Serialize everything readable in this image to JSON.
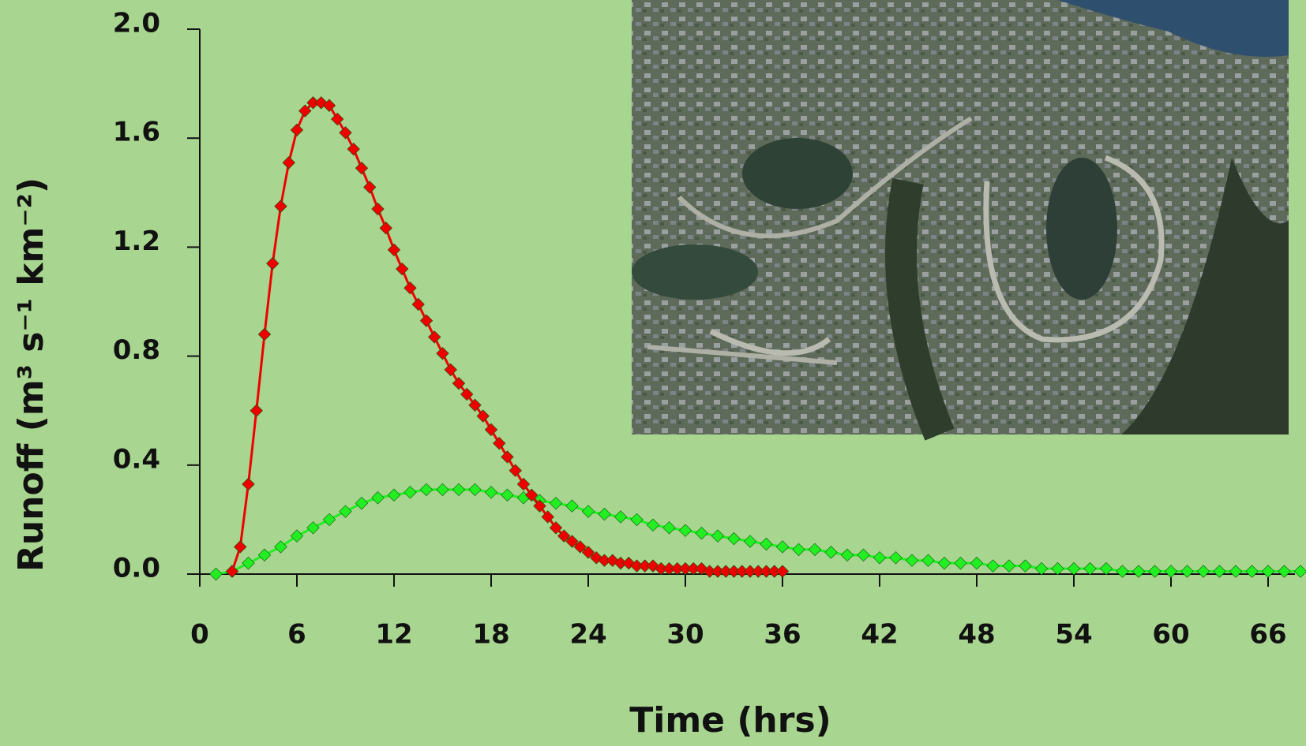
{
  "chart_data": {
    "type": "line",
    "xlabel": "Time (hrs)",
    "ylabel": "Runoff (m³ s⁻¹ km⁻²)",
    "xlim": [
      0,
      68
    ],
    "xticks": [
      0,
      6,
      12,
      18,
      24,
      30,
      36,
      42,
      48,
      54,
      60,
      66
    ],
    "ylim": [
      0,
      2
    ],
    "yticks": [
      {
        "value": 0,
        "label": "0.0"
      },
      0.4,
      0.8,
      1.2,
      1.6,
      {
        "value": 2,
        "label": "2.0"
      }
    ],
    "series": [
      {
        "color": "#ee0000",
        "x": [
          2,
          2.5,
          3,
          3.5,
          4,
          4.5,
          5,
          5.5,
          6,
          6.5,
          7,
          7.5,
          8,
          8.5,
          9,
          9.5,
          10,
          10.5,
          11,
          11.5,
          12,
          12.5,
          13,
          13.5,
          14,
          14.5,
          15,
          15.5,
          16,
          16.5,
          17,
          17.5,
          18,
          18.5,
          19,
          19.5,
          20,
          20.5,
          21,
          21.5,
          22,
          22.5,
          23,
          23.5,
          24,
          24.5,
          25,
          25.5,
          26,
          26.5,
          27,
          27.5,
          28,
          28.5,
          29,
          29.5,
          30,
          30.5,
          31,
          31.5,
          32,
          32.5,
          33,
          33.5,
          34,
          34.5,
          35,
          35.5,
          36
        ],
        "values": [
          0.01,
          0.1,
          0.33,
          0.6,
          0.88,
          1.14,
          1.35,
          1.51,
          1.63,
          1.7,
          1.73,
          1.73,
          1.72,
          1.67,
          1.62,
          1.56,
          1.49,
          1.42,
          1.34,
          1.27,
          1.19,
          1.12,
          1.05,
          0.99,
          0.93,
          0.87,
          0.81,
          0.75,
          0.7,
          0.66,
          0.62,
          0.58,
          0.53,
          0.48,
          0.43,
          0.38,
          0.33,
          0.29,
          0.25,
          0.21,
          0.17,
          0.14,
          0.12,
          0.1,
          0.08,
          0.06,
          0.05,
          0.05,
          0.04,
          0.04,
          0.03,
          0.03,
          0.03,
          0.02,
          0.02,
          0.02,
          0.02,
          0.02,
          0.02,
          0.01,
          0.01,
          0.01,
          0.01,
          0.01,
          0.01,
          0.01,
          0.01,
          0.01,
          0.01
        ]
      },
      {
        "color": "#22ee22",
        "x": [
          1,
          2,
          3,
          4,
          5,
          6,
          7,
          8,
          9,
          10,
          11,
          12,
          13,
          14,
          15,
          16,
          17,
          18,
          19,
          20,
          21,
          22,
          23,
          24,
          25,
          26,
          27,
          28,
          29,
          30,
          31,
          32,
          33,
          34,
          35,
          36,
          37,
          38,
          39,
          40,
          41,
          42,
          43,
          44,
          45,
          46,
          47,
          48,
          49,
          50,
          51,
          52,
          53,
          54,
          55,
          56,
          57,
          58,
          59,
          60,
          61,
          62,
          63,
          64,
          65,
          66,
          67,
          68
        ],
        "values": [
          0,
          0.01,
          0.04,
          0.07,
          0.1,
          0.14,
          0.17,
          0.2,
          0.23,
          0.26,
          0.28,
          0.29,
          0.3,
          0.31,
          0.31,
          0.31,
          0.31,
          0.3,
          0.29,
          0.28,
          0.27,
          0.26,
          0.25,
          0.23,
          0.22,
          0.21,
          0.2,
          0.18,
          0.17,
          0.16,
          0.15,
          0.14,
          0.13,
          0.12,
          0.11,
          0.1,
          0.09,
          0.09,
          0.08,
          0.07,
          0.07,
          0.06,
          0.06,
          0.05,
          0.05,
          0.04,
          0.04,
          0.04,
          0.03,
          0.03,
          0.03,
          0.02,
          0.02,
          0.02,
          0.02,
          0.02,
          0.01,
          0.01,
          0.01,
          0.01,
          0.01,
          0.01,
          0.01,
          0.01,
          0.01,
          0.01,
          0.01,
          0.01
        ]
      }
    ]
  }
}
